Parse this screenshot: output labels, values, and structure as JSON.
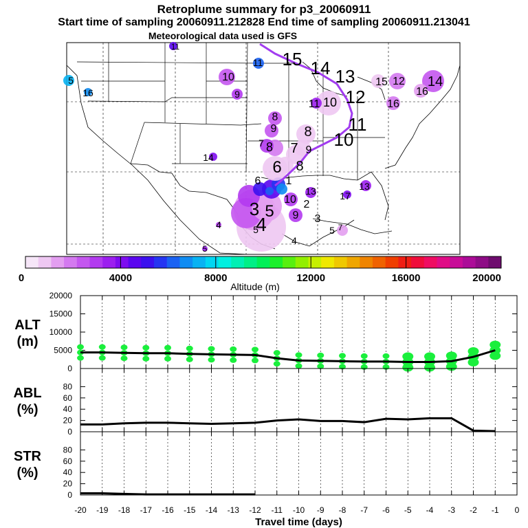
{
  "header": {
    "title": "Retroplume summary for p3_20060911",
    "sampling_line": "Start time of sampling 20060911.212828     End time of sampling 20060911.213041",
    "met_line": "Meteorological data used is GFS"
  },
  "colorbar": {
    "ticks": [
      "0",
      "4000",
      "8000",
      "12000",
      "16000",
      "20000"
    ],
    "label": "Altitude (m)",
    "colors": [
      "#f6e6f8",
      "#eec8f2",
      "#e39ef0",
      "#d479f0",
      "#c457ef",
      "#b23aef",
      "#9c1fef",
      "#7e0cef",
      "#5a06ef",
      "#3b10ef",
      "#2535f2",
      "#1a62f2",
      "#0f8cf2",
      "#08b2f2",
      "#00d6f2",
      "#00efe0",
      "#00efb4",
      "#00ef86",
      "#00ef58",
      "#1cef2c",
      "#58ef10",
      "#92ef00",
      "#c6ef00",
      "#efe800",
      "#efc800",
      "#efa600",
      "#ef8400",
      "#ef6200",
      "#ef3e00",
      "#ef1e14",
      "#ef0c3a",
      "#ef0c62",
      "#e00c86",
      "#c80c98",
      "#ac0c98",
      "#8e0c86",
      "#6e0c6e"
    ]
  },
  "map": {
    "labels": [
      "1",
      "2",
      "3",
      "4",
      "5",
      "6",
      "7",
      "8",
      "9",
      "10",
      "11",
      "12",
      "13",
      "14",
      "15",
      "16",
      "17"
    ]
  },
  "chart_data": [
    {
      "type": "line",
      "name": "ALT",
      "ylabel": "ALT\n(m)",
      "ylabel_lines": [
        "ALT",
        "(m)"
      ],
      "yticks": [
        "0",
        "5000",
        "10000",
        "15000",
        "20000"
      ],
      "ylim": [
        0,
        20000
      ],
      "x": [
        -20,
        -19,
        -18,
        -17,
        -16,
        -15,
        -14,
        -13,
        -12,
        -11,
        -10,
        -9,
        -8,
        -7,
        -6,
        -5,
        -4,
        -3,
        -2,
        -1
      ],
      "values": [
        4400,
        4400,
        4300,
        4200,
        4200,
        4000,
        3900,
        3800,
        3700,
        2800,
        2200,
        2100,
        2000,
        1900,
        1900,
        1800,
        1800,
        2000,
        3200,
        5000
      ],
      "marker_color": "#1aef3c"
    },
    {
      "type": "line",
      "name": "ABL",
      "ylabel_lines": [
        "ABL",
        "(%)"
      ],
      "yticks": [
        "0",
        "20",
        "40",
        "60",
        "80"
      ],
      "ylim": [
        0,
        100
      ],
      "x": [
        -20,
        -19,
        -18,
        -17,
        -16,
        -15,
        -14,
        -13,
        -12,
        -11,
        -10,
        -9,
        -8,
        -7,
        -6,
        -5,
        -4,
        -3,
        -2,
        -1
      ],
      "values": [
        13,
        13,
        15,
        16,
        16,
        15,
        14,
        15,
        16,
        20,
        22,
        19,
        19,
        17,
        23,
        22,
        24,
        24,
        2,
        1
      ]
    },
    {
      "type": "line",
      "name": "STR",
      "ylabel_lines": [
        "STR",
        "(%)"
      ],
      "yticks": [
        "0",
        "20",
        "40",
        "60",
        "80"
      ],
      "ylim": [
        0,
        100
      ],
      "x": [
        -20,
        -19,
        -18,
        -17,
        -16,
        -15,
        -14,
        -13,
        -12
      ],
      "values": [
        3,
        3,
        2,
        1,
        1,
        1,
        1,
        1,
        1
      ],
      "xticks": [
        "-20",
        "-19",
        "-18",
        "-17",
        "-16",
        "-15",
        "-14",
        "-13",
        "-12",
        "-11",
        "-10",
        "-9",
        "-8",
        "-7",
        "-6",
        "-5",
        "-4",
        "-3",
        "-2",
        "-1",
        "0"
      ],
      "xlabel": "Travel time (days)"
    }
  ]
}
